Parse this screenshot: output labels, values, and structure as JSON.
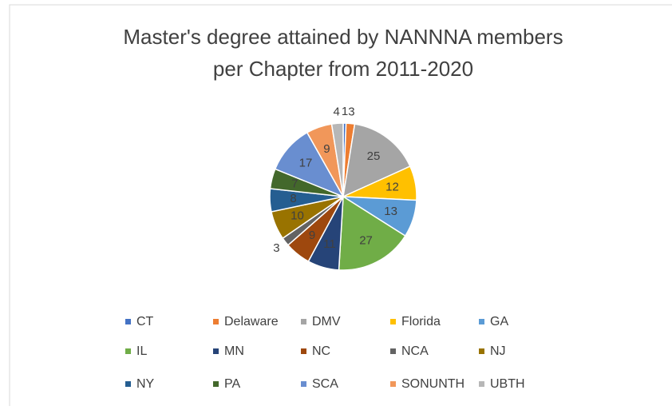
{
  "chart_data": {
    "type": "pie",
    "title": [
      "Master's degree attained by NANNNA members",
      "per Chapter from 2011-2020"
    ],
    "categories": [
      "CT",
      "Delaware",
      "DMV",
      "Florida",
      "GA",
      "IL",
      "MN",
      "NC",
      "NCA",
      "NJ",
      "NY",
      "PA",
      "SCA",
      "SONUNTH",
      "UBTH"
    ],
    "values": [
      1,
      3,
      25,
      12,
      13,
      27,
      11,
      9,
      3,
      10,
      8,
      7,
      17,
      9,
      4
    ],
    "colors": [
      "#4472c4",
      "#ed7d31",
      "#a5a5a5",
      "#ffc000",
      "#5b9bd5",
      "#70ad47",
      "#264478",
      "#9e480e",
      "#636363",
      "#997300",
      "#255e91",
      "#43682b",
      "#698ed0",
      "#f1975a",
      "#b7b7b7"
    ],
    "legend": "bottom"
  }
}
